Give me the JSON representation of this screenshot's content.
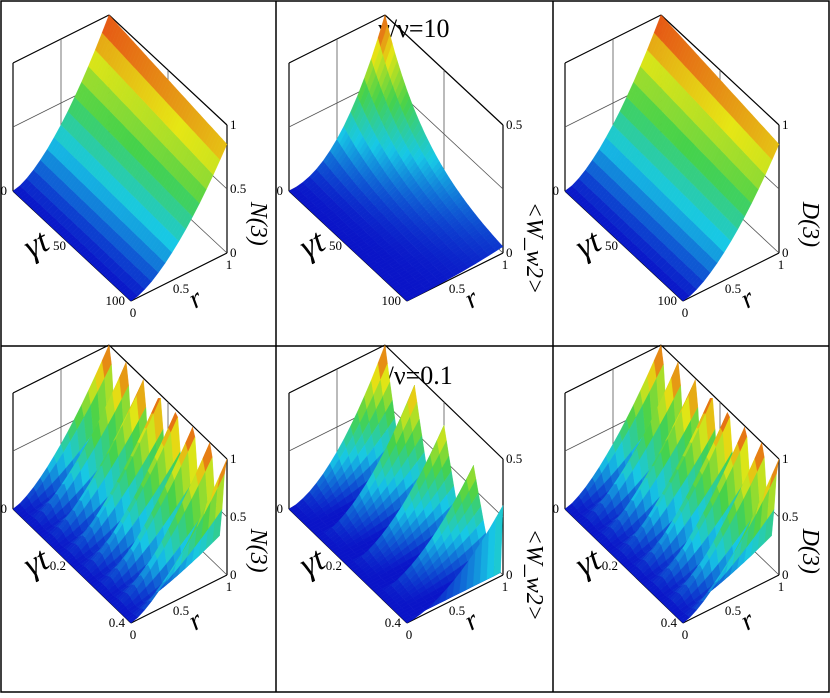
{
  "figure": {
    "row_titles": [
      "γ/ν=10",
      "γ/ν=0.1"
    ]
  },
  "colors": {
    "low": "#0a14c8",
    "mid": "#17c8e6",
    "midhigh": "#46d24a",
    "high": "#e6e614",
    "peak": "#e63214",
    "frame": "#000000",
    "grid": "#555555"
  },
  "chart_data": [
    {
      "type": "surface",
      "row": 0,
      "col": 0,
      "title": "γ/ν=10",
      "xlabel": "γt",
      "ylabel": "r",
      "zlabel": "N(3)",
      "x_ticks": [
        "0",
        "50",
        "100"
      ],
      "y_ticks": [
        "0",
        "0.5",
        "1"
      ],
      "z_ticks": [
        "0",
        "0.5",
        "1"
      ],
      "xlim": [
        0,
        100
      ],
      "ylim": [
        0,
        1
      ],
      "zlim": [
        0,
        1
      ],
      "shape": "sigmoid_rise",
      "peak": 1.0
    },
    {
      "type": "surface",
      "row": 0,
      "col": 1,
      "title": "γ/ν=10",
      "xlabel": "γt",
      "ylabel": "r",
      "zlabel": "<W_w2>",
      "x_ticks": [
        "0",
        "50",
        "100"
      ],
      "y_ticks": [
        "0.5",
        "1"
      ],
      "z_ticks": [
        "0",
        "0.5"
      ],
      "xlim": [
        0,
        100
      ],
      "ylim": [
        0,
        1
      ],
      "zlim": [
        0,
        0.5
      ],
      "shape": "hump",
      "peak": 0.5
    },
    {
      "type": "surface",
      "row": 0,
      "col": 2,
      "title": "γ/ν=10",
      "xlabel": "γt",
      "ylabel": "r",
      "zlabel": "D(3)",
      "x_ticks": [
        "0",
        "50",
        "100"
      ],
      "y_ticks": [
        "0",
        "0.5",
        "1"
      ],
      "z_ticks": [
        "0",
        "1"
      ],
      "xlim": [
        0,
        100
      ],
      "ylim": [
        0,
        1
      ],
      "zlim": [
        0,
        1
      ],
      "shape": "sigmoid_rise",
      "peak": 1.0
    },
    {
      "type": "surface",
      "row": 1,
      "col": 0,
      "title": "γ/ν=0.1",
      "xlabel": "γt",
      "ylabel": "r",
      "zlabel": "N(3)",
      "x_ticks": [
        "0",
        "0.2",
        "0.4"
      ],
      "y_ticks": [
        "0",
        "0.5",
        "1"
      ],
      "z_ticks": [
        "0",
        "0.5",
        "1"
      ],
      "xlim": [
        0,
        0.5
      ],
      "ylim": [
        0,
        1
      ],
      "zlim": [
        0,
        1
      ],
      "shape": "oscillation",
      "peak": 1.0,
      "oscillations": 7
    },
    {
      "type": "surface",
      "row": 1,
      "col": 1,
      "title": "γ/ν=0.1",
      "xlabel": "γt",
      "ylabel": "r",
      "zlabel": "<W_w2>",
      "x_ticks": [
        "0",
        "0.2",
        "0.4"
      ],
      "y_ticks": [
        "0",
        "0.5",
        "1"
      ],
      "z_ticks": [
        "0",
        "0.5"
      ],
      "xlim": [
        0,
        0.5
      ],
      "ylim": [
        0,
        1
      ],
      "zlim": [
        0,
        0.5
      ],
      "shape": "spikes",
      "peak": 0.5,
      "oscillations": 4
    },
    {
      "type": "surface",
      "row": 1,
      "col": 2,
      "title": "γ/ν=0.1",
      "xlabel": "γt",
      "ylabel": "r",
      "zlabel": "D(3)",
      "x_ticks": [
        "0",
        "0.2",
        "0.4"
      ],
      "y_ticks": [
        "0",
        "0.5",
        "1"
      ],
      "z_ticks": [
        "0",
        "0.5",
        "1"
      ],
      "xlim": [
        0,
        0.5
      ],
      "ylim": [
        0,
        1
      ],
      "zlim": [
        0,
        1
      ],
      "shape": "oscillation",
      "peak": 1.0,
      "oscillations": 7
    }
  ]
}
